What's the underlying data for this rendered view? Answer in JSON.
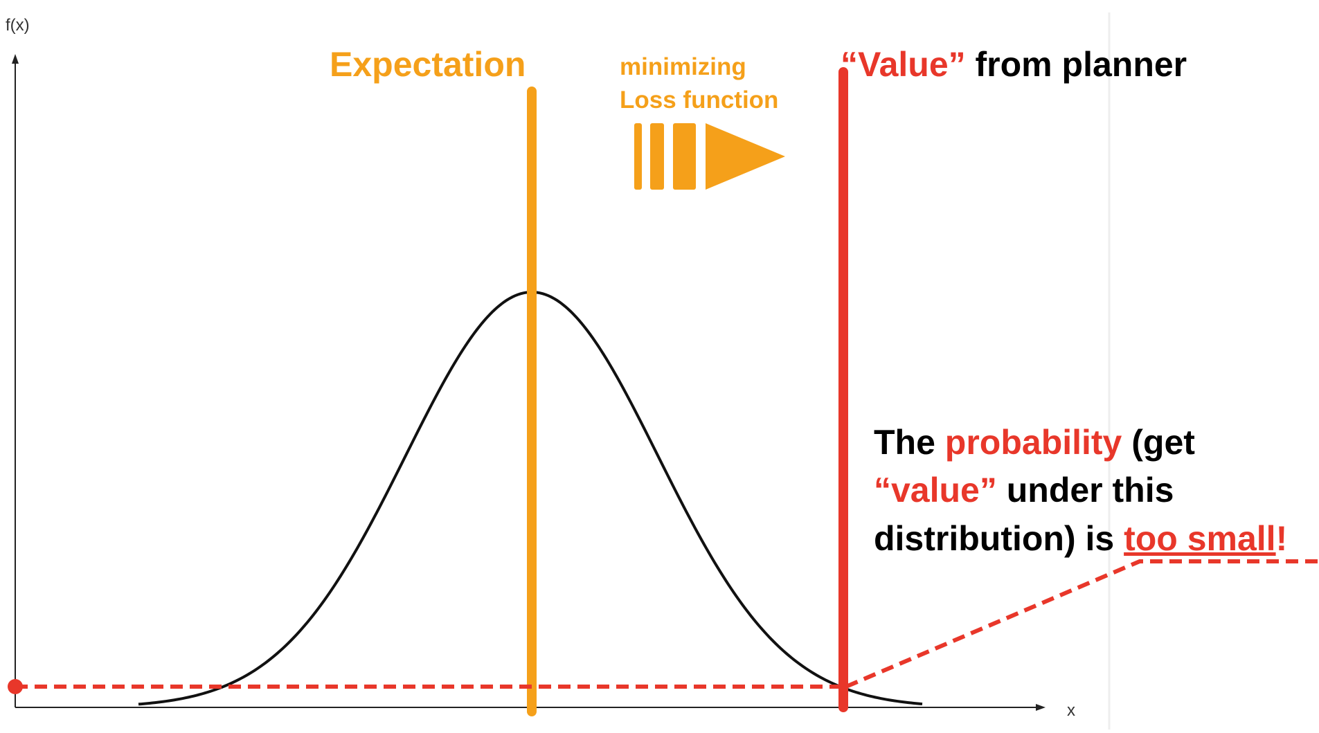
{
  "colors": {
    "orange": "#F5A01A",
    "red": "#E8372A",
    "curve": "#111111",
    "axis": "#222222",
    "text": "#000000",
    "divider": "#eeeeee"
  },
  "axes": {
    "y_label": "f(x)",
    "x_label": "x"
  },
  "labels": {
    "expectation": "Expectation",
    "loss_line1": "minimizing",
    "loss_line2": "Loss function",
    "value_quoted": "“Value”",
    "value_rest": " from planner"
  },
  "note": {
    "l1_a": "The ",
    "l1_b": "probability",
    "l1_c": " (get",
    "l2_a": "“value”",
    "l2_b": " under this",
    "l3_a": "distribution) is ",
    "l3_b": "too small",
    "l3_c": "!"
  },
  "icons": {
    "arrow": "direction-arrow-icon",
    "point": "probability-point-icon"
  }
}
